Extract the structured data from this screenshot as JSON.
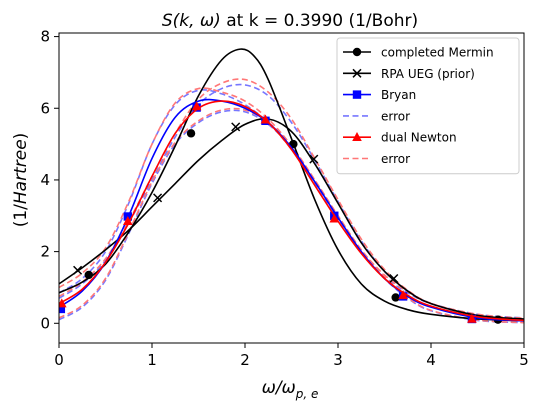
{
  "chart_data": {
    "type": "line",
    "title_prefix": "S(k, ω)",
    "title_suffix": " at k = 0.3990 (1/Bohr)",
    "xlabel_main": "ω/ω",
    "xlabel_sub": "p, e",
    "ylabel_left": "(1/",
    "ylabel_mid": "Hartree",
    "ylabel_right": ")",
    "xlim": [
      0,
      5
    ],
    "ylim": [
      -0.55,
      8.1
    ],
    "xticks": [
      0,
      1,
      2,
      3,
      4,
      5
    ],
    "yticks": [
      0,
      2,
      4,
      6,
      8
    ],
    "grid": false,
    "legend_position": "upper-right",
    "series": [
      {
        "name": "completed Mermin",
        "color": "#000000",
        "style": "solid",
        "marker": "circle",
        "x": [
          0,
          0.25,
          0.5,
          0.75,
          1,
          1.25,
          1.5,
          1.75,
          1.95,
          2.1,
          2.25,
          2.5,
          2.75,
          3,
          3.25,
          3.5,
          3.75,
          4,
          4.5,
          5
        ],
        "y": [
          0.85,
          1.15,
          1.65,
          2.55,
          3.65,
          4.95,
          6.35,
          7.35,
          7.65,
          7.45,
          6.8,
          5.15,
          3.45,
          2.05,
          1.1,
          0.62,
          0.38,
          0.25,
          0.12,
          0.07
        ],
        "marker_x": [
          0.32,
          1.42,
          2.52,
          3.62,
          4.72
        ],
        "marker_y": [
          1.35,
          5.3,
          5.0,
          0.72,
          0.1
        ]
      },
      {
        "name": "RPA UEG (prior)",
        "color": "#000000",
        "style": "solid",
        "marker": "x",
        "x": [
          0,
          0.25,
          0.5,
          0.75,
          1,
          1.25,
          1.5,
          1.75,
          2,
          2.25,
          2.5,
          2.75,
          3,
          3.25,
          3.5,
          3.75,
          4,
          4.5,
          5
        ],
        "y": [
          1.1,
          1.55,
          2.05,
          2.6,
          3.25,
          3.9,
          4.55,
          5.1,
          5.55,
          5.7,
          5.35,
          4.45,
          3.35,
          2.25,
          1.45,
          0.9,
          0.55,
          0.22,
          0.12
        ],
        "marker_x": [
          0.2,
          1.06,
          1.9,
          2.74,
          3.6
        ],
        "marker_y": [
          1.48,
          3.5,
          5.48,
          4.58,
          1.25
        ]
      },
      {
        "name": "Bryan",
        "color": "#0000ff",
        "style": "solid",
        "marker": "square",
        "x": [
          0,
          0.25,
          0.5,
          0.75,
          1,
          1.25,
          1.5,
          1.75,
          2,
          2.25,
          2.5,
          2.75,
          3,
          3.25,
          3.5,
          3.75,
          4,
          4.5,
          5
        ],
        "y": [
          0.45,
          0.9,
          1.7,
          3.0,
          4.6,
          5.75,
          6.2,
          6.2,
          6.0,
          5.6,
          4.9,
          3.95,
          2.95,
          2.0,
          1.25,
          0.75,
          0.45,
          0.15,
          0.07
        ],
        "marker_x": [
          0.02,
          0.74,
          1.48,
          2.22,
          2.96,
          3.7,
          4.44
        ],
        "marker_y": [
          0.4,
          2.98,
          6.02,
          5.65,
          3.0,
          0.75,
          0.12
        ]
      },
      {
        "name": "error",
        "color": "#7777ff",
        "style": "dashed",
        "marker": "none",
        "x": [
          0,
          0.25,
          0.5,
          0.75,
          1,
          1.25,
          1.5,
          1.75,
          2,
          2.25,
          2.5,
          2.75,
          3,
          3.25,
          3.5,
          3.75,
          4,
          4.5,
          5
        ],
        "y": [
          0.85,
          1.25,
          2.0,
          3.35,
          5.0,
          6.1,
          6.5,
          6.4,
          6.1,
          5.6,
          4.85,
          3.9,
          2.9,
          2.0,
          1.3,
          0.85,
          0.55,
          0.25,
          0.15
        ]
      },
      {
        "name": "error",
        "color": "#7777ff",
        "style": "dashed",
        "marker": "none",
        "x": [
          0,
          0.25,
          0.5,
          0.75,
          1,
          1.25,
          1.5,
          1.75,
          2,
          2.25,
          2.5,
          2.75,
          3,
          3.25,
          3.5,
          3.75,
          4,
          4.5,
          5
        ],
        "y": [
          0.1,
          0.45,
          1.2,
          2.5,
          3.9,
          5.0,
          5.6,
          5.9,
          5.9,
          5.55,
          4.9,
          3.95,
          2.95,
          2.0,
          1.25,
          0.7,
          0.35,
          0.08,
          0.02
        ]
      },
      {
        "name": "error",
        "color": "#7777ff",
        "style": "dashed",
        "marker": "none",
        "x": [
          0,
          0.25,
          0.5,
          0.75,
          1,
          1.25,
          1.5,
          1.75,
          2,
          2.25,
          2.5,
          2.75,
          3,
          3.25,
          3.5,
          3.75,
          4,
          4.5,
          5
        ],
        "y": [
          0.7,
          1.1,
          1.75,
          2.8,
          4.0,
          5.2,
          6.1,
          6.55,
          6.65,
          6.35,
          5.6,
          4.55,
          3.4,
          2.3,
          1.45,
          0.9,
          0.55,
          0.2,
          0.08
        ]
      },
      {
        "name": "dual Newton",
        "color": "#ff0000",
        "style": "solid",
        "marker": "triangle",
        "x": [
          0,
          0.25,
          0.5,
          0.75,
          1,
          1.25,
          1.5,
          1.75,
          2,
          2.25,
          2.5,
          2.75,
          3,
          3.25,
          3.5,
          3.75,
          4,
          4.5,
          5
        ],
        "y": [
          0.55,
          0.95,
          1.7,
          2.8,
          4.1,
          5.3,
          6.0,
          6.2,
          6.05,
          5.6,
          4.85,
          3.85,
          2.85,
          1.95,
          1.25,
          0.78,
          0.48,
          0.18,
          0.08
        ],
        "marker_x": [
          0.03,
          0.74,
          1.48,
          2.22,
          2.96,
          3.7,
          4.44
        ],
        "marker_y": [
          0.55,
          2.85,
          6.05,
          5.68,
          2.92,
          0.78,
          0.12
        ]
      },
      {
        "name": "error",
        "color": "#ff7777",
        "style": "dashed",
        "marker": "none",
        "x": [
          0,
          0.25,
          0.5,
          0.75,
          1,
          1.25,
          1.5,
          1.75,
          2,
          2.25,
          2.5,
          2.75,
          3,
          3.25,
          3.5,
          3.75,
          4,
          4.5,
          5
        ],
        "y": [
          1.0,
          1.4,
          2.1,
          3.4,
          5.0,
          6.15,
          6.55,
          6.45,
          6.2,
          5.7,
          4.95,
          4.0,
          3.0,
          2.05,
          1.35,
          0.88,
          0.55,
          0.25,
          0.14
        ]
      },
      {
        "name": "error",
        "color": "#ff7777",
        "style": "dashed",
        "marker": "none",
        "x": [
          0,
          0.25,
          0.5,
          0.75,
          1,
          1.25,
          1.5,
          1.75,
          2,
          2.25,
          2.5,
          2.75,
          3,
          3.25,
          3.5,
          3.75,
          4,
          4.5,
          5
        ],
        "y": [
          0.75,
          1.15,
          1.8,
          2.85,
          4.1,
          5.3,
          6.25,
          6.7,
          6.8,
          6.45,
          5.7,
          4.6,
          3.45,
          2.35,
          1.5,
          0.92,
          0.56,
          0.2,
          0.08
        ]
      },
      {
        "name": "error",
        "color": "#ff7777",
        "style": "dashed",
        "marker": "none",
        "x": [
          0,
          0.25,
          0.5,
          0.75,
          1,
          1.25,
          1.5,
          1.75,
          2,
          2.25,
          2.5,
          2.75,
          3,
          3.25,
          3.5,
          3.75,
          4,
          4.5,
          5
        ],
        "y": [
          0.15,
          0.5,
          1.25,
          2.55,
          3.95,
          5.05,
          5.65,
          5.95,
          5.95,
          5.6,
          4.95,
          4.0,
          3.0,
          2.05,
          1.3,
          0.72,
          0.36,
          0.09,
          0.02
        ]
      }
    ],
    "legend": [
      {
        "label": "completed Mermin",
        "color": "#000000",
        "style": "solid",
        "marker": "circle"
      },
      {
        "label": "RPA UEG (prior)",
        "color": "#000000",
        "style": "solid",
        "marker": "x"
      },
      {
        "label": "Bryan",
        "color": "#0000ff",
        "style": "solid",
        "marker": "square"
      },
      {
        "label": "error",
        "color": "#7777ff",
        "style": "dashed",
        "marker": "none"
      },
      {
        "label": "dual Newton",
        "color": "#ff0000",
        "style": "solid",
        "marker": "triangle"
      },
      {
        "label": "error",
        "color": "#ff7777",
        "style": "dashed",
        "marker": "none"
      }
    ]
  }
}
